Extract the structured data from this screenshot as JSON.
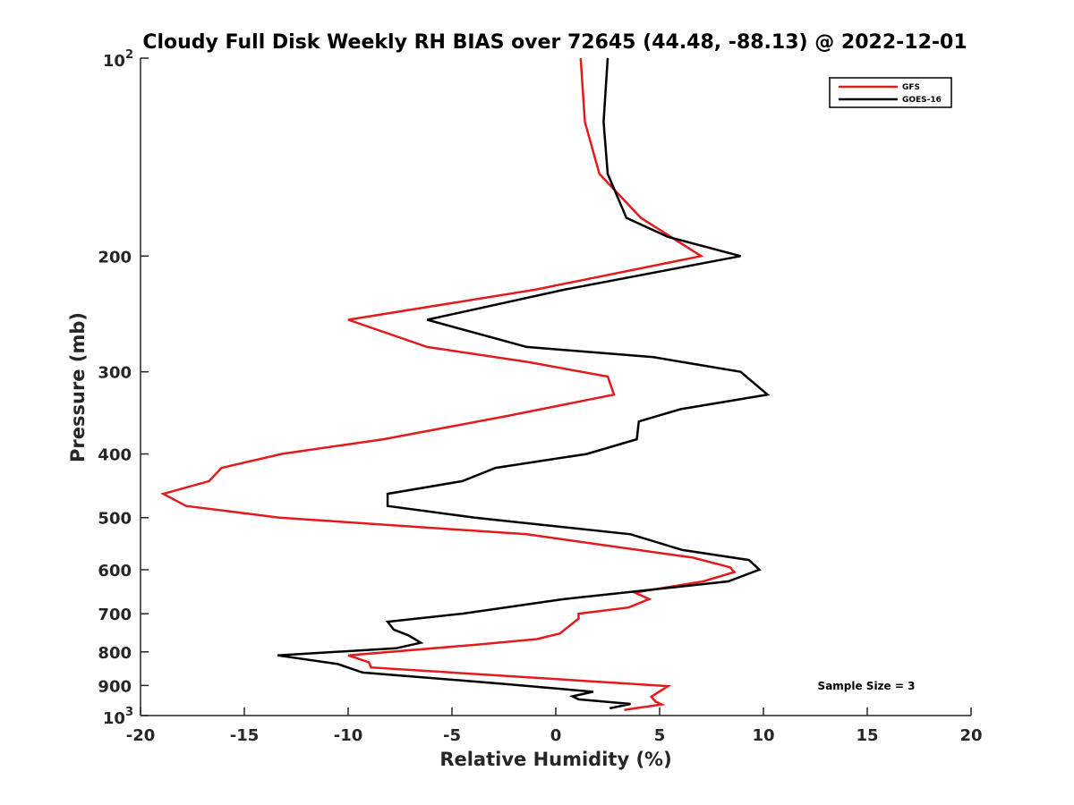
{
  "chart_data": {
    "type": "line",
    "title": "Cloudy Full Disk Weekly RH BIAS over 72645 (44.48, -88.13) @ 2022-12-01",
    "xlabel": "Relative Humidity (%)",
    "ylabel": "Pressure (mb)",
    "xlim": [
      -20,
      20
    ],
    "ylim": [
      100,
      1000
    ],
    "y_scale": "log",
    "y_reversed": true,
    "x_ticks": [
      "-20",
      "-15",
      "-10",
      "-5",
      "0",
      "5",
      "10",
      "15",
      "20"
    ],
    "y_ticks": [
      {
        "value": 100,
        "base": "10",
        "exp": "2"
      },
      {
        "value": 200,
        "label": "200"
      },
      {
        "value": 300,
        "label": "300"
      },
      {
        "value": 400,
        "label": "400"
      },
      {
        "value": 500,
        "label": "500"
      },
      {
        "value": 600,
        "label": "600"
      },
      {
        "value": 700,
        "label": "700"
      },
      {
        "value": 800,
        "label": "800"
      },
      {
        "value": 900,
        "label": "900"
      },
      {
        "value": 1000,
        "base": "10",
        "exp": "3"
      }
    ],
    "grid": false,
    "legend_position": "top-right",
    "annotation": "Sample Size = 3",
    "series": [
      {
        "name": "GFS",
        "color": "#e41a1c",
        "points": [
          [
            1.2,
            100
          ],
          [
            1.4,
            125
          ],
          [
            2.1,
            150
          ],
          [
            4.1,
            175
          ],
          [
            7.0,
            200
          ],
          [
            -1.0,
            225
          ],
          [
            -10.0,
            250
          ],
          [
            -6.2,
            275
          ],
          [
            -1.3,
            290
          ],
          [
            2.5,
            305
          ],
          [
            2.8,
            325
          ],
          [
            -2.3,
            350
          ],
          [
            -8.3,
            380
          ],
          [
            -13.2,
            400
          ],
          [
            -16.1,
            420
          ],
          [
            -16.7,
            440
          ],
          [
            -18.9,
            460
          ],
          [
            -17.8,
            480
          ],
          [
            -13.3,
            500
          ],
          [
            -1.4,
            530
          ],
          [
            6.6,
            575
          ],
          [
            8.4,
            595
          ],
          [
            8.6,
            605
          ],
          [
            7.1,
            625
          ],
          [
            3.8,
            650
          ],
          [
            4.5,
            665
          ],
          [
            3.5,
            685
          ],
          [
            1.1,
            700
          ],
          [
            1.1,
            712
          ],
          [
            0.2,
            750
          ],
          [
            -0.9,
            765
          ],
          [
            -3.8,
            780
          ],
          [
            -10.0,
            810
          ],
          [
            -9.0,
            830
          ],
          [
            -8.9,
            845
          ],
          [
            5.4,
            902
          ],
          [
            4.6,
            936
          ],
          [
            4.8,
            952
          ],
          [
            5.1,
            962
          ],
          [
            3.3,
            980
          ]
        ]
      },
      {
        "name": "GOES-16",
        "color": "#000000",
        "points": [
          [
            2.5,
            100
          ],
          [
            2.3,
            125
          ],
          [
            2.5,
            150
          ],
          [
            3.4,
            175
          ],
          [
            5.4,
            187
          ],
          [
            8.9,
            200
          ],
          [
            0.4,
            225
          ],
          [
            -6.2,
            250
          ],
          [
            -1.4,
            275
          ],
          [
            4.7,
            285
          ],
          [
            8.9,
            300
          ],
          [
            10.2,
            325
          ],
          [
            6.0,
            342
          ],
          [
            4.0,
            357
          ],
          [
            3.9,
            380
          ],
          [
            1.5,
            400
          ],
          [
            -2.9,
            420
          ],
          [
            -4.5,
            440
          ],
          [
            -8.1,
            460
          ],
          [
            -8.1,
            480
          ],
          [
            -3.9,
            500
          ],
          [
            3.6,
            530
          ],
          [
            6.1,
            560
          ],
          [
            9.3,
            580
          ],
          [
            9.8,
            600
          ],
          [
            8.3,
            625
          ],
          [
            0.4,
            665
          ],
          [
            -4.5,
            700
          ],
          [
            -8.1,
            720
          ],
          [
            -7.8,
            740
          ],
          [
            -7.1,
            755
          ],
          [
            -6.5,
            775
          ],
          [
            -7.7,
            790
          ],
          [
            -13.4,
            810
          ],
          [
            -10.5,
            835
          ],
          [
            -9.3,
            860
          ],
          [
            -2.5,
            895
          ],
          [
            1.8,
            920
          ],
          [
            0.8,
            935
          ],
          [
            1.1,
            945
          ],
          [
            3.6,
            960
          ],
          [
            2.6,
            975
          ]
        ]
      }
    ]
  }
}
